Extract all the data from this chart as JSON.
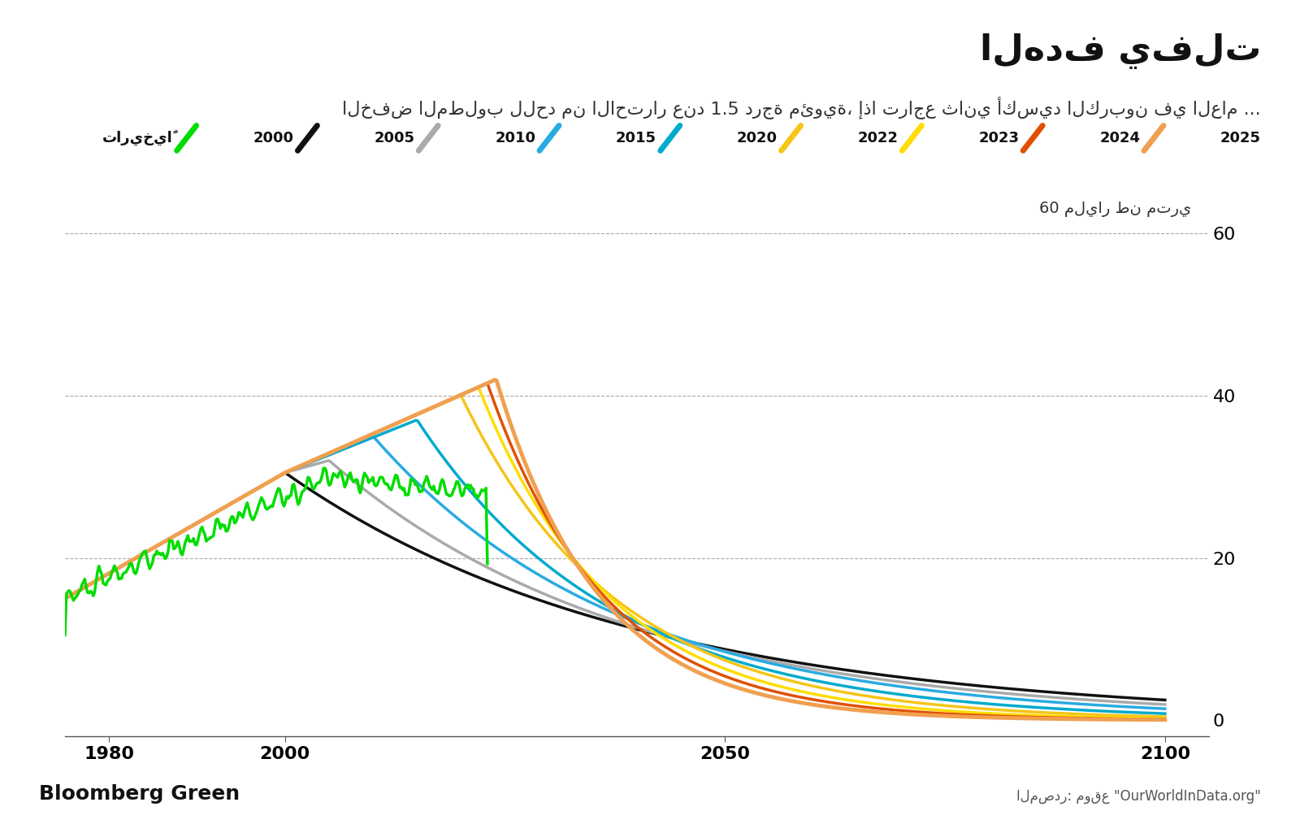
{
  "title": "الهدف يفلت",
  "subtitle": "الخفض المطلوب للحد من الاحترار عند 1.5 درجة مئوية، إذا تراجع ثاني أكسيد الكربون في العام ...",
  "ylabel": "60 مليار طن متري",
  "source_text": "المصدر: موقع \"OurWorldInData.org\"",
  "bloomberg_text": "Bloomberg Green",
  "xlim": [
    1975,
    2105
  ],
  "ylim": [
    -2,
    65
  ],
  "yticks": [
    0,
    20,
    40,
    60
  ],
  "xticks": [
    1980,
    2000,
    2050,
    2100
  ],
  "grid_color": "#aaaaaa",
  "bg_color": "#ffffff",
  "series": {
    "historical": {
      "label": "تاريخياً",
      "color": "#00dd00",
      "lw": 2.5
    },
    "y2000": {
      "label": "2000",
      "color": "#111111",
      "lw": 2.5
    },
    "y2005": {
      "label": "2005",
      "color": "#aaaaaa",
      "lw": 2.5
    },
    "y2010": {
      "label": "2010",
      "color": "#29abe2",
      "lw": 2.5
    },
    "y2015": {
      "label": "2015",
      "color": "#00aacc",
      "lw": 2.5
    },
    "y2020": {
      "label": "2020",
      "color": "#f5c518",
      "lw": 2.5
    },
    "y2022": {
      "label": "2022",
      "color": "#ffdd00",
      "lw": 2.5
    },
    "y2023": {
      "label": "2023",
      "color": "#e05000",
      "lw": 2.5
    },
    "y2024": {
      "label": "2024",
      "color": "#f0a050",
      "lw": 3.5
    },
    "y2025": {
      "label": "2025",
      "color": "#f0a050",
      "lw": 0
    }
  },
  "legend_order": [
    "2025",
    "2024",
    "2023",
    "2022",
    "2020",
    "2015",
    "2010",
    "2005",
    "2000",
    "تاريخياً"
  ]
}
